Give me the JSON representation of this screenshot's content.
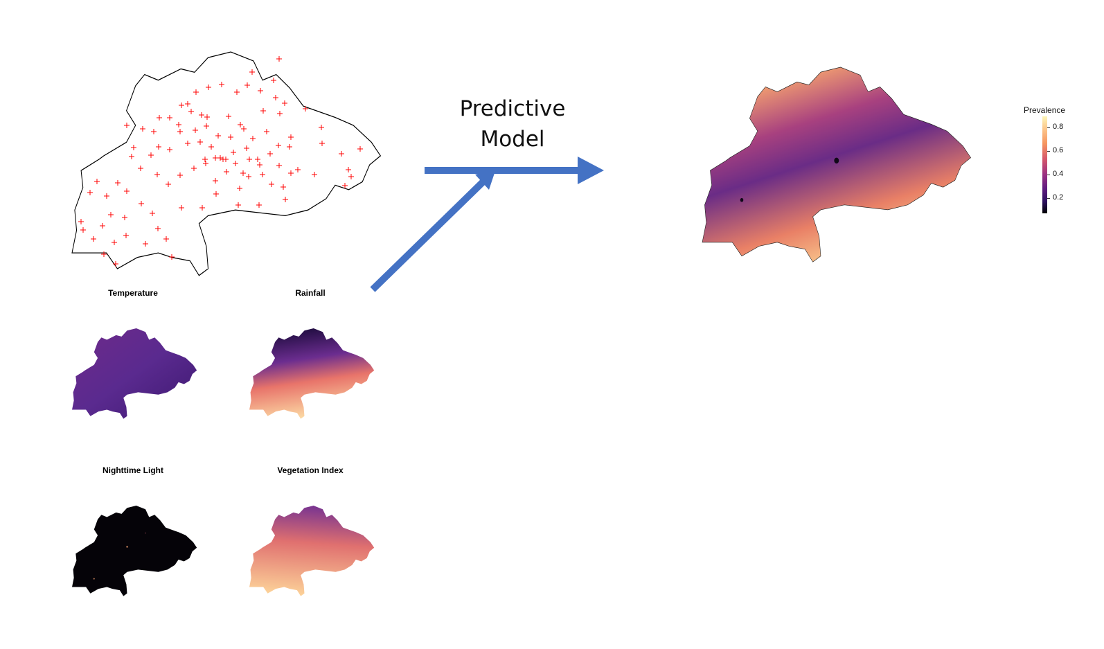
{
  "diagram": {
    "model_label_line1": "Predictive",
    "model_label_line2": "Model",
    "arrow_color": "#4472c4",
    "survey_marker_color": "#ff0000"
  },
  "covariates": [
    {
      "title": "Temperature",
      "palette": "magma-dark"
    },
    {
      "title": "Rainfall",
      "palette": "magma-gradient"
    },
    {
      "title": "Nighttime Light",
      "palette": "black"
    },
    {
      "title": "Vegetation Index",
      "palette": "magma-light"
    }
  ],
  "output_map": {
    "legend": {
      "title": "Prevalence",
      "ticks": [
        "0.8",
        "0.6",
        "0.4",
        "0.2"
      ]
    }
  }
}
